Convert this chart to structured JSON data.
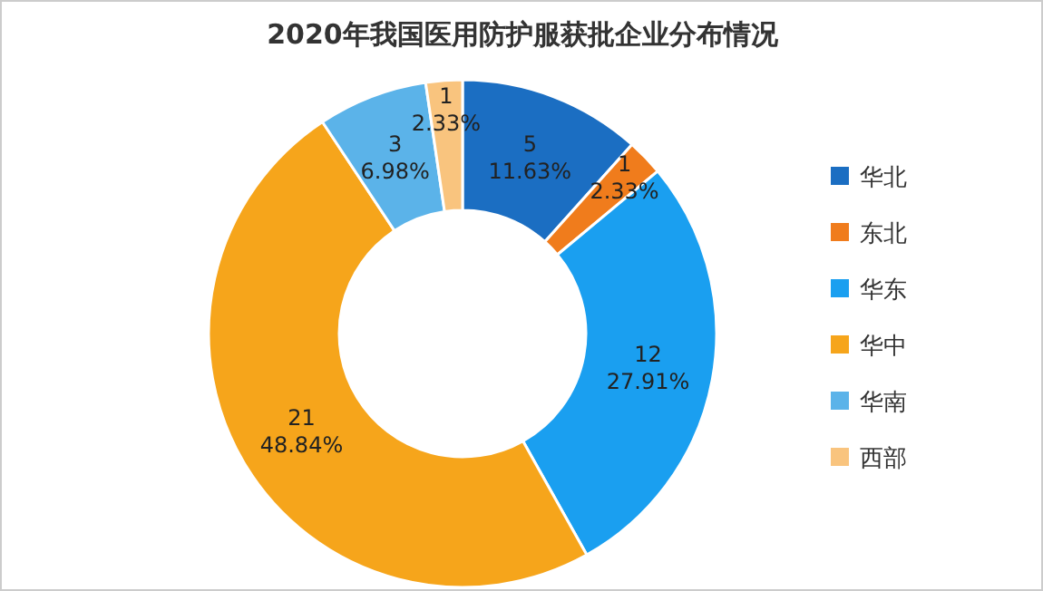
{
  "chart_data": {
    "type": "donut",
    "title": "2020年我国医用防护服获批企业分布情况",
    "categories": [
      "华北",
      "东北",
      "华东",
      "华中",
      "华南",
      "西部"
    ],
    "values": [
      5,
      1,
      12,
      21,
      3,
      1
    ],
    "colors": [
      "#1b6ec2",
      "#f07c1c",
      "#1a9ff0",
      "#f6a51b",
      "#5bb3e9",
      "#f9c47e"
    ],
    "value_labels": [
      "5\n11.63%",
      "1\n2.33%",
      "12\n27.91%",
      "21\n48.84%",
      "3\n6.98%",
      "1\n2.33%"
    ],
    "legend": "right"
  }
}
